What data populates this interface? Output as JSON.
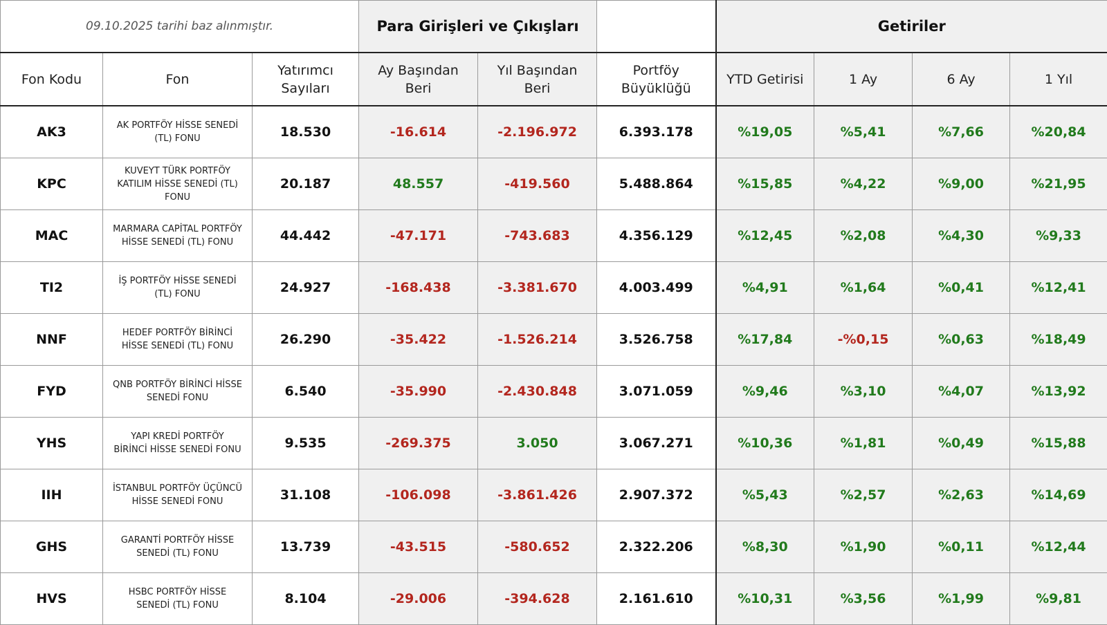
{
  "note": "09.10.2025  tarihi baz alınmıştır.",
  "groups": {
    "flows": "Para Girişleri ve Çıkışları",
    "returns": "Getiriler"
  },
  "headers": {
    "code": "Fon Kodu",
    "fund": "Fon",
    "investors_l1": "Yatırımcı",
    "investors_l2": "Sayıları",
    "mtd_l1": "Ay Başından",
    "mtd_l2": "Beri",
    "ytd_l1": "Yıl Başından",
    "ytd_l2": "Beri",
    "size_l1": "Portföy",
    "size_l2": "Büyüklüğü",
    "ytd_return": "YTD Getirisi",
    "m1": "1 Ay",
    "m6": "6 Ay",
    "y1": "1 Yıl"
  },
  "rows": [
    {
      "code": "AK3",
      "fund_l1": "AK PORTFÖY HİSSE SENEDİ",
      "fund_l2": "(TL) FONU",
      "fund_l3": "",
      "investors": "18.530",
      "mtd": "-16.614",
      "ytd": "-2.196.972",
      "size": "6.393.178",
      "r_ytd": "%19,05",
      "r_1m": "%5,41",
      "r_6m": "%7,66",
      "r_1y": "%20,84"
    },
    {
      "code": "KPC",
      "fund_l1": "KUVEYT TÜRK PORTFÖY",
      "fund_l2": "KATILIM HİSSE SENEDİ (TL)",
      "fund_l3": "FONU",
      "investors": "20.187",
      "mtd": "48.557",
      "ytd": "-419.560",
      "size": "5.488.864",
      "r_ytd": "%15,85",
      "r_1m": "%4,22",
      "r_6m": "%9,00",
      "r_1y": "%21,95"
    },
    {
      "code": "MAC",
      "fund_l1": "MARMARA CAPİTAL PORTFÖY",
      "fund_l2": "HİSSE SENEDİ (TL) FONU",
      "fund_l3": "",
      "investors": "44.442",
      "mtd": "-47.171",
      "ytd": "-743.683",
      "size": "4.356.129",
      "r_ytd": "%12,45",
      "r_1m": "%2,08",
      "r_6m": "%4,30",
      "r_1y": "%9,33"
    },
    {
      "code": "TI2",
      "fund_l1": "İŞ PORTFÖY HİSSE SENEDİ",
      "fund_l2": "(TL) FONU",
      "fund_l3": "",
      "investors": "24.927",
      "mtd": "-168.438",
      "ytd": "-3.381.670",
      "size": "4.003.499",
      "r_ytd": "%4,91",
      "r_1m": "%1,64",
      "r_6m": "%0,41",
      "r_1y": "%12,41"
    },
    {
      "code": "NNF",
      "fund_l1": "HEDEF PORTFÖY BİRİNCİ",
      "fund_l2": "HİSSE SENEDİ (TL) FONU",
      "fund_l3": "",
      "investors": "26.290",
      "mtd": "-35.422",
      "ytd": "-1.526.214",
      "size": "3.526.758",
      "r_ytd": "%17,84",
      "r_1m": "-%0,15",
      "r_6m": "%0,63",
      "r_1y": "%18,49"
    },
    {
      "code": "FYD",
      "fund_l1": "QNB PORTFÖY BİRİNCİ HİSSE",
      "fund_l2": "SENEDİ FONU",
      "fund_l3": "",
      "investors": "6.540",
      "mtd": "-35.990",
      "ytd": "-2.430.848",
      "size": "3.071.059",
      "r_ytd": "%9,46",
      "r_1m": "%3,10",
      "r_6m": "%4,07",
      "r_1y": "%13,92"
    },
    {
      "code": "YHS",
      "fund_l1": "YAPI KREDİ PORTFÖY",
      "fund_l2": "BİRİNCİ HİSSE SENEDİ FONU",
      "fund_l3": "",
      "investors": "9.535",
      "mtd": "-269.375",
      "ytd": "3.050",
      "size": "3.067.271",
      "r_ytd": "%10,36",
      "r_1m": "%1,81",
      "r_6m": "%0,49",
      "r_1y": "%15,88"
    },
    {
      "code": "IIH",
      "fund_l1": "İSTANBUL PORTFÖY ÜÇÜNCÜ",
      "fund_l2": "HİSSE SENEDİ FONU",
      "fund_l3": "",
      "investors": "31.108",
      "mtd": "-106.098",
      "ytd": "-3.861.426",
      "size": "2.907.372",
      "r_ytd": "%5,43",
      "r_1m": "%2,57",
      "r_6m": "%2,63",
      "r_1y": "%14,69"
    },
    {
      "code": "GHS",
      "fund_l1": "GARANTİ PORTFÖY HİSSE",
      "fund_l2": "SENEDİ (TL) FONU",
      "fund_l3": "",
      "investors": "13.739",
      "mtd": "-43.515",
      "ytd": "-580.652",
      "size": "2.322.206",
      "r_ytd": "%8,30",
      "r_1m": "%1,90",
      "r_6m": "%0,11",
      "r_1y": "%12,44"
    },
    {
      "code": "HVS",
      "fund_l1": "HSBC PORTFÖY HİSSE",
      "fund_l2": "SENEDİ (TL) FONU",
      "fund_l3": "",
      "investors": "8.104",
      "mtd": "-29.006",
      "ytd": "-394.628",
      "size": "2.161.610",
      "r_ytd": "%10,31",
      "r_1m": "%3,56",
      "r_6m": "%1,99",
      "r_1y": "%9,81"
    }
  ],
  "colors": {
    "negative": "#b3261e",
    "positive": "#217a1c",
    "shade": "#f0f0f0"
  }
}
